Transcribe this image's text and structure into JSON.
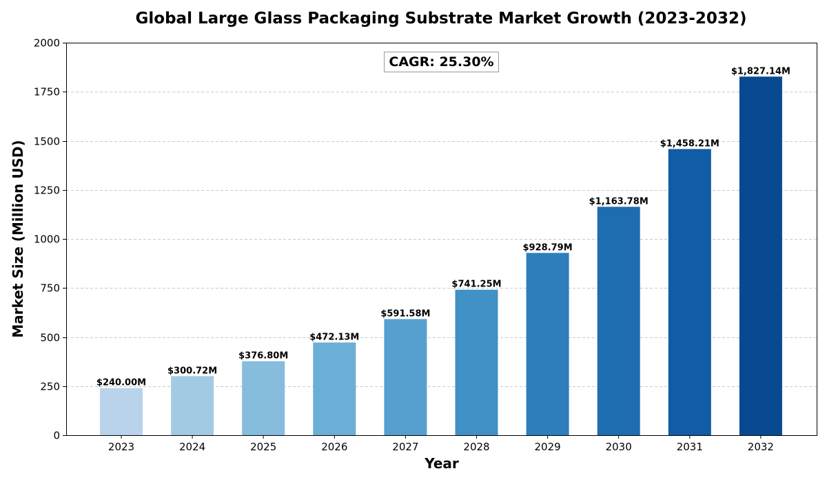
{
  "chart_data": {
    "type": "bar",
    "title": "Global Large Glass Packaging Substrate Market Growth (2023-2032)",
    "xlabel": "Year",
    "ylabel": "Market Size (Million USD)",
    "categories": [
      "2023",
      "2024",
      "2025",
      "2026",
      "2027",
      "2028",
      "2029",
      "2030",
      "2031",
      "2032"
    ],
    "values": [
      240.0,
      300.72,
      376.8,
      472.13,
      591.58,
      741.25,
      928.79,
      1163.78,
      1458.21,
      1827.14
    ],
    "value_labels": [
      "$240.00M",
      "$300.72M",
      "$376.80M",
      "$472.13M",
      "$591.58M",
      "$741.25M",
      "$928.79M",
      "$1,163.78M",
      "$1,458.21M",
      "$1,827.14M"
    ],
    "colors": [
      "#b9d4ea",
      "#a3cae3",
      "#86bcdc",
      "#6baed6",
      "#56a0cf",
      "#4190c6",
      "#2e7ebc",
      "#1f6db1",
      "#115ca5",
      "#084a92"
    ],
    "ylim": [
      0,
      2000
    ],
    "yticks": [
      0,
      250,
      500,
      750,
      1000,
      1250,
      1500,
      1750,
      2000
    ],
    "grid": "horizontal dashed",
    "annotation": "CAGR: 25.30%"
  }
}
